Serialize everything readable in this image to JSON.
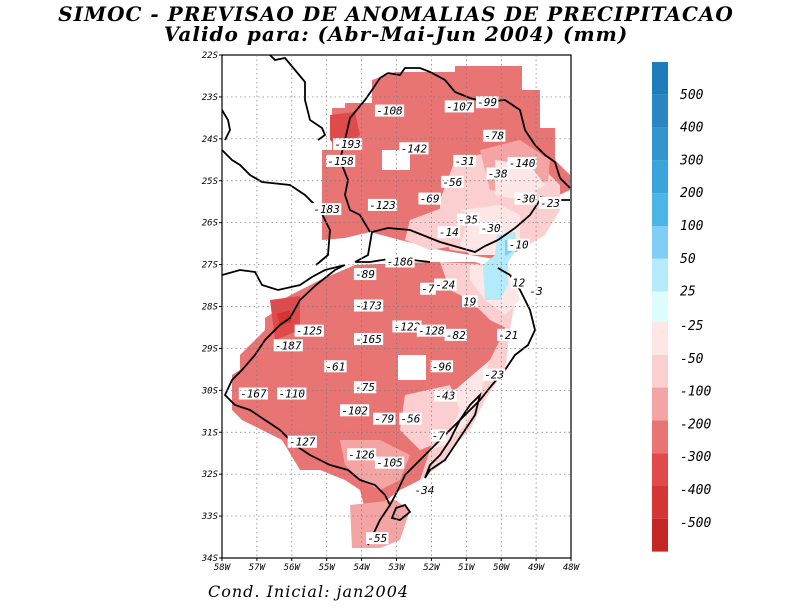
{
  "title": "SIMOC - PREVISAO DE ANOMALIAS DE PRECIPITACAO",
  "subtitle": "Valido para: (Abr-Mai-Jun 2004) (mm)",
  "footer": "Cond. Inicial: jan2004",
  "map": {
    "lon_ticks": [
      "58W",
      "57W",
      "56W",
      "55W",
      "54W",
      "53W",
      "52W",
      "51W",
      "50W",
      "49W",
      "48W"
    ],
    "lat_ticks": [
      "22S",
      "23S",
      "24S",
      "25S",
      "26S",
      "27S",
      "28S",
      "29S",
      "30S",
      "31S",
      "32S",
      "33S",
      "34S"
    ],
    "lon_range": [
      -58,
      -48
    ],
    "lat_range": [
      -34,
      -22
    ],
    "grid": true
  },
  "contour_labels": [
    {
      "text": "-108",
      "lon": -53.2,
      "lat": -23.35
    },
    {
      "text": "-107",
      "lon": -51.2,
      "lat": -23.25
    },
    {
      "text": "-99",
      "lon": -50.4,
      "lat": -23.15
    },
    {
      "text": "-78",
      "lon": -50.2,
      "lat": -23.95
    },
    {
      "text": "-193",
      "lon": -54.4,
      "lat": -24.15
    },
    {
      "text": "-142",
      "lon": -52.5,
      "lat": -24.25
    },
    {
      "text": "-158",
      "lon": -54.6,
      "lat": -24.55
    },
    {
      "text": "-31",
      "lon": -51.05,
      "lat": -24.55
    },
    {
      "text": "-140",
      "lon": -49.4,
      "lat": -24.6
    },
    {
      "text": "-38",
      "lon": -50.1,
      "lat": -24.85
    },
    {
      "text": "-56",
      "lon": -51.4,
      "lat": -25.05
    },
    {
      "text": "-69",
      "lon": -52.05,
      "lat": -25.45
    },
    {
      "text": "-30",
      "lon": -49.3,
      "lat": -25.45
    },
    {
      "text": "-23",
      "lon": -48.6,
      "lat": -25.55
    },
    {
      "text": "-183",
      "lon": -55.0,
      "lat": -25.7
    },
    {
      "text": "-123",
      "lon": -53.4,
      "lat": -25.6
    },
    {
      "text": "-35",
      "lon": -50.95,
      "lat": -25.95
    },
    {
      "text": "-30",
      "lon": -50.3,
      "lat": -26.15
    },
    {
      "text": "-14",
      "lon": -51.5,
      "lat": -26.25
    },
    {
      "text": "-10",
      "lon": -49.5,
      "lat": -26.55
    },
    {
      "text": "-186",
      "lon": -52.9,
      "lat": -26.95
    },
    {
      "text": "-89",
      "lon": -53.9,
      "lat": -27.25
    },
    {
      "text": "-24",
      "lon": -51.6,
      "lat": -27.5
    },
    {
      "text": "-7",
      "lon": -52.1,
      "lat": -27.6
    },
    {
      "text": "12",
      "lon": -49.5,
      "lat": -27.45
    },
    {
      "text": "-3",
      "lon": -49.0,
      "lat": -27.65
    },
    {
      "text": "19",
      "lon": -50.9,
      "lat": -27.9
    },
    {
      "text": "-173",
      "lon": -53.8,
      "lat": -28.0
    },
    {
      "text": "-125",
      "lon": -55.5,
      "lat": -28.6
    },
    {
      "text": "-122",
      "lon": -52.7,
      "lat": -28.5
    },
    {
      "text": "-128",
      "lon": -52.0,
      "lat": -28.6
    },
    {
      "text": "-82",
      "lon": -51.3,
      "lat": -28.7
    },
    {
      "text": "-21",
      "lon": -49.8,
      "lat": -28.7
    },
    {
      "text": "-187",
      "lon": -56.1,
      "lat": -28.95
    },
    {
      "text": "-165",
      "lon": -53.8,
      "lat": -28.8
    },
    {
      "text": "-61",
      "lon": -54.75,
      "lat": -29.45
    },
    {
      "text": "-96",
      "lon": -51.7,
      "lat": -29.45
    },
    {
      "text": "-23",
      "lon": -50.2,
      "lat": -29.65
    },
    {
      "text": "-75",
      "lon": -53.9,
      "lat": -29.95
    },
    {
      "text": "-167",
      "lon": -57.1,
      "lat": -30.1
    },
    {
      "text": "-110",
      "lon": -56.0,
      "lat": -30.1
    },
    {
      "text": "-43",
      "lon": -51.6,
      "lat": -30.15
    },
    {
      "text": "-102",
      "lon": -54.2,
      "lat": -30.5
    },
    {
      "text": "-79",
      "lon": -53.35,
      "lat": -30.7
    },
    {
      "text": "-56",
      "lon": -52.6,
      "lat": -30.7
    },
    {
      "text": "-7",
      "lon": -51.8,
      "lat": -31.1
    },
    {
      "text": "-127",
      "lon": -55.7,
      "lat": -31.25
    },
    {
      "text": "-126",
      "lon": -54.0,
      "lat": -31.55
    },
    {
      "text": "-105",
      "lon": -53.2,
      "lat": -31.75
    },
    {
      "text": "-34",
      "lon": -52.2,
      "lat": -32.4
    },
    {
      "text": "-55",
      "lon": -53.55,
      "lat": -33.55
    }
  ],
  "legend": {
    "positive": [
      {
        "label": "500",
        "color": "#2a86c2"
      },
      {
        "label": "400",
        "color": "#3196cf"
      },
      {
        "label": "300",
        "color": "#3aa5dc"
      },
      {
        "label": "200",
        "color": "#4bb5e8"
      },
      {
        "label": "100",
        "color": "#80cef5"
      },
      {
        "label": "50",
        "color": "#b4ebfb"
      },
      {
        "label": "25",
        "color": "#ddfcfc"
      }
    ],
    "negative": [
      {
        "label": "-25",
        "color": "#fde6e6"
      },
      {
        "label": "-50",
        "color": "#fbcfcf"
      },
      {
        "label": "-100",
        "color": "#f5a4a4"
      },
      {
        "label": "-200",
        "color": "#e97474"
      },
      {
        "label": "-300",
        "color": "#e04a4a"
      },
      {
        "label": "-400",
        "color": "#d43535"
      },
      {
        "label": "-500",
        "color": "#c42525"
      }
    ],
    "top_color": "#1c7cbc",
    "bottom_color": "#b51b1b"
  }
}
